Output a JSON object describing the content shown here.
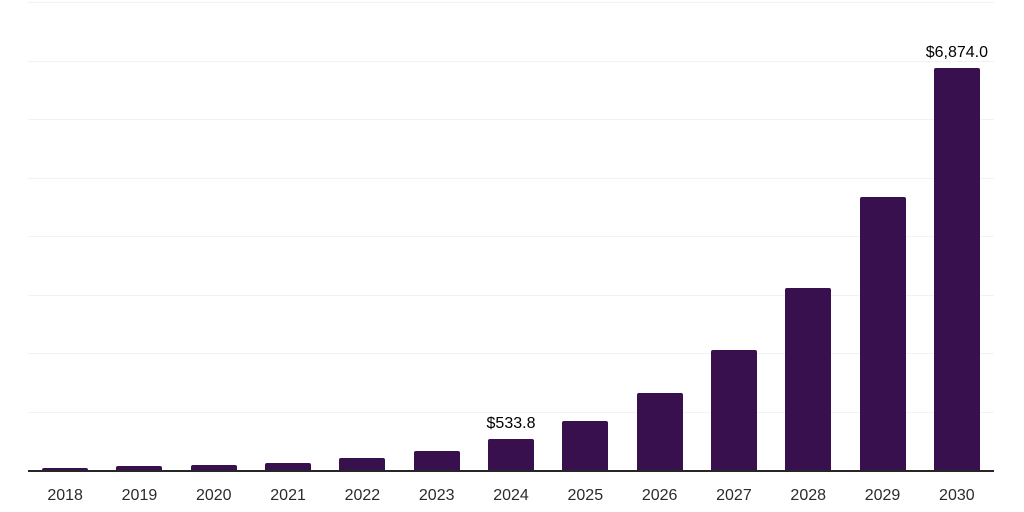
{
  "chart_data": {
    "type": "bar",
    "title": "",
    "xlabel": "",
    "ylabel": "",
    "categories": [
      "2018",
      "2019",
      "2020",
      "2021",
      "2022",
      "2023",
      "2024",
      "2025",
      "2026",
      "2027",
      "2028",
      "2029",
      "2030"
    ],
    "values": [
      30,
      62,
      87,
      126,
      200,
      330,
      533.8,
      830,
      1316,
      2051,
      3110,
      4672,
      6874.0
    ],
    "value_labels": [
      "",
      "",
      "",
      "",
      "",
      "",
      "$533.8",
      "",
      "",
      "",
      "",
      "",
      "$6,874.0"
    ],
    "ylim": [
      0,
      8000
    ],
    "gridline_interval": 1000,
    "grid": "horizontal",
    "y_axis_tick_labels": "none",
    "legend_position": "none",
    "colors": {
      "bar": "#38104D",
      "gridline": "#f2f2f2",
      "axis_line": "#262626",
      "value_label": "#000000",
      "tick_label": "#2b2b2b",
      "background": "#ffffff"
    }
  }
}
